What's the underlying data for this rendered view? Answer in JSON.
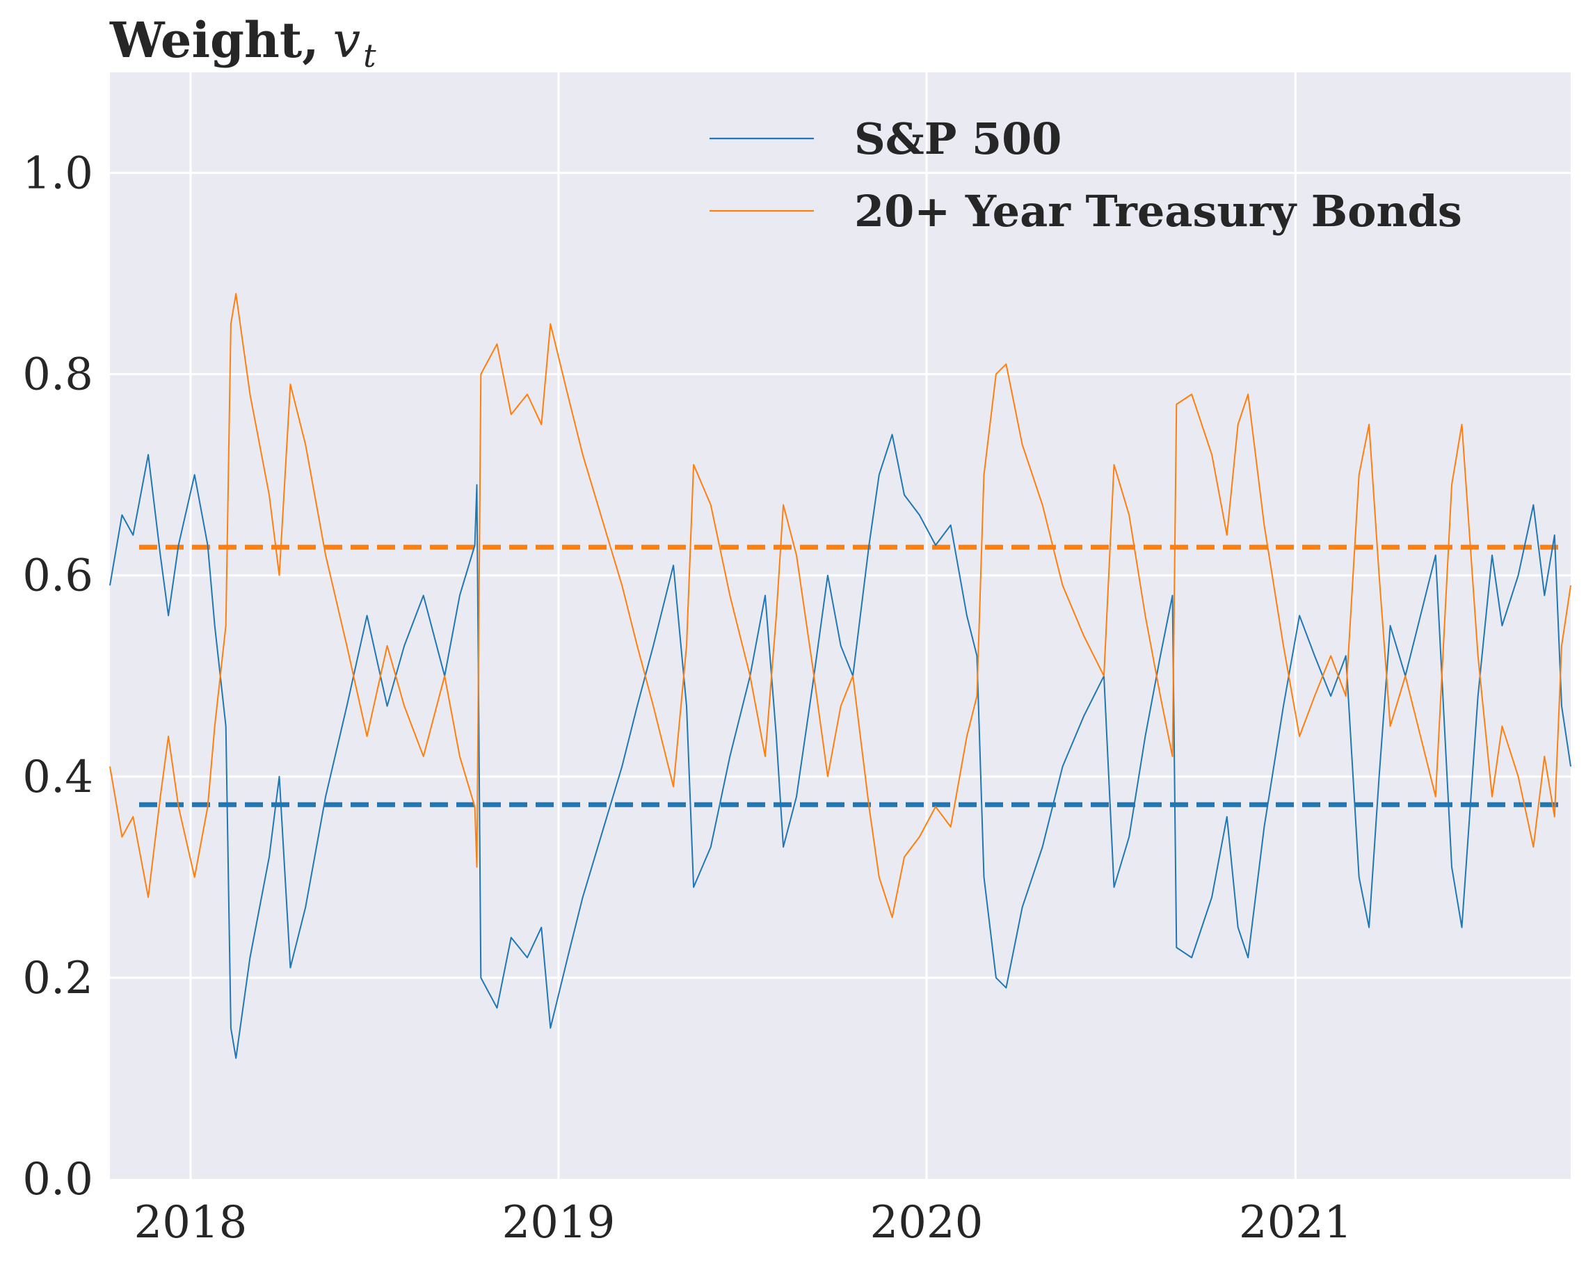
{
  "chart_data": {
    "type": "line",
    "title": "Weight,",
    "title_math": "v",
    "title_math_sub": "t",
    "x_range": [
      "2017-10-13",
      "2021-10-01"
    ],
    "ylim": [
      0,
      1.1
    ],
    "yticks": [
      "0.0",
      "0.2",
      "0.4",
      "0.6",
      "0.8",
      "1.0"
    ],
    "xticks": [
      {
        "date": "2018-01-01",
        "label": "2018"
      },
      {
        "date": "2019-01-01",
        "label": "2019"
      },
      {
        "date": "2020-01-01",
        "label": "2020"
      },
      {
        "date": "2021-01-01",
        "label": "2021"
      }
    ],
    "grid": true,
    "legend_position": "top-right",
    "colors": {
      "background": "#eaeaf2",
      "grid": "#ffffff",
      "sp500": "#1f77b4",
      "treasury": "#ff7f0e",
      "text": "#262626"
    },
    "series": [
      {
        "name": "S&P 500",
        "color": "#1f77b4",
        "points": [
          [
            "2017-10-13",
            0.59
          ],
          [
            "2017-10-25",
            0.66
          ],
          [
            "2017-11-05",
            0.64
          ],
          [
            "2017-11-20",
            0.72
          ],
          [
            "2017-12-02",
            0.62
          ],
          [
            "2017-12-10",
            0.56
          ],
          [
            "2017-12-20",
            0.63
          ],
          [
            "2018-01-05",
            0.7
          ],
          [
            "2018-01-18",
            0.63
          ],
          [
            "2018-01-25",
            0.55
          ],
          [
            "2018-02-05",
            0.45
          ],
          [
            "2018-02-10",
            0.15
          ],
          [
            "2018-02-15",
            0.12
          ],
          [
            "2018-03-01",
            0.22
          ],
          [
            "2018-03-20",
            0.32
          ],
          [
            "2018-03-30",
            0.4
          ],
          [
            "2018-04-10",
            0.21
          ],
          [
            "2018-04-25",
            0.27
          ],
          [
            "2018-05-15",
            0.38
          ],
          [
            "2018-06-05",
            0.47
          ],
          [
            "2018-06-25",
            0.56
          ],
          [
            "2018-07-15",
            0.47
          ],
          [
            "2018-08-01",
            0.53
          ],
          [
            "2018-08-20",
            0.58
          ],
          [
            "2018-09-10",
            0.5
          ],
          [
            "2018-09-25",
            0.58
          ],
          [
            "2018-10-10",
            0.63
          ],
          [
            "2018-10-12",
            0.69
          ],
          [
            "2018-10-16",
            0.2
          ],
          [
            "2018-11-01",
            0.17
          ],
          [
            "2018-11-15",
            0.24
          ],
          [
            "2018-12-01",
            0.22
          ],
          [
            "2018-12-15",
            0.25
          ],
          [
            "2018-12-24",
            0.15
          ],
          [
            "2019-01-10",
            0.22
          ],
          [
            "2019-01-25",
            0.28
          ],
          [
            "2019-02-15",
            0.35
          ],
          [
            "2019-03-05",
            0.41
          ],
          [
            "2019-03-20",
            0.47
          ],
          [
            "2019-04-05",
            0.53
          ],
          [
            "2019-04-25",
            0.61
          ],
          [
            "2019-05-08",
            0.47
          ],
          [
            "2019-05-15",
            0.29
          ],
          [
            "2019-06-01",
            0.33
          ],
          [
            "2019-06-20",
            0.42
          ],
          [
            "2019-07-10",
            0.5
          ],
          [
            "2019-07-25",
            0.58
          ],
          [
            "2019-08-05",
            0.44
          ],
          [
            "2019-08-12",
            0.33
          ],
          [
            "2019-08-25",
            0.38
          ],
          [
            "2019-09-10",
            0.49
          ],
          [
            "2019-09-25",
            0.6
          ],
          [
            "2019-10-08",
            0.53
          ],
          [
            "2019-10-20",
            0.5
          ],
          [
            "2019-11-05",
            0.63
          ],
          [
            "2019-11-15",
            0.7
          ],
          [
            "2019-11-28",
            0.74
          ],
          [
            "2019-12-10",
            0.68
          ],
          [
            "2019-12-25",
            0.66
          ],
          [
            "2020-01-10",
            0.63
          ],
          [
            "2020-01-25",
            0.65
          ],
          [
            "2020-02-10",
            0.56
          ],
          [
            "2020-02-20",
            0.52
          ],
          [
            "2020-02-27",
            0.3
          ],
          [
            "2020-03-10",
            0.2
          ],
          [
            "2020-03-20",
            0.19
          ],
          [
            "2020-04-05",
            0.27
          ],
          [
            "2020-04-25",
            0.33
          ],
          [
            "2020-05-15",
            0.41
          ],
          [
            "2020-06-05",
            0.46
          ],
          [
            "2020-06-25",
            0.5
          ],
          [
            "2020-07-05",
            0.29
          ],
          [
            "2020-07-20",
            0.34
          ],
          [
            "2020-08-05",
            0.44
          ],
          [
            "2020-08-20",
            0.52
          ],
          [
            "2020-09-01",
            0.58
          ],
          [
            "2020-09-05",
            0.23
          ],
          [
            "2020-09-20",
            0.22
          ],
          [
            "2020-10-10",
            0.28
          ],
          [
            "2020-10-25",
            0.36
          ],
          [
            "2020-11-05",
            0.25
          ],
          [
            "2020-11-15",
            0.22
          ],
          [
            "2020-12-01",
            0.35
          ],
          [
            "2020-12-20",
            0.47
          ],
          [
            "2021-01-05",
            0.56
          ],
          [
            "2021-01-20",
            0.52
          ],
          [
            "2021-02-05",
            0.48
          ],
          [
            "2021-02-20",
            0.52
          ],
          [
            "2021-03-05",
            0.3
          ],
          [
            "2021-03-15",
            0.25
          ],
          [
            "2021-03-25",
            0.4
          ],
          [
            "2021-04-05",
            0.55
          ],
          [
            "2021-04-20",
            0.5
          ],
          [
            "2021-05-05",
            0.56
          ],
          [
            "2021-05-20",
            0.62
          ],
          [
            "2021-06-05",
            0.31
          ],
          [
            "2021-06-15",
            0.25
          ],
          [
            "2021-07-01",
            0.48
          ],
          [
            "2021-07-15",
            0.62
          ],
          [
            "2021-07-25",
            0.55
          ],
          [
            "2021-08-10",
            0.6
          ],
          [
            "2021-08-25",
            0.67
          ],
          [
            "2021-09-05",
            0.58
          ],
          [
            "2021-09-15",
            0.64
          ],
          [
            "2021-09-22",
            0.47
          ],
          [
            "2021-10-01",
            0.41
          ]
        ]
      },
      {
        "name": "20+ Year Treasury Bonds",
        "color": "#ff7f0e",
        "points": [
          [
            "2017-10-13",
            0.41
          ],
          [
            "2017-10-25",
            0.34
          ],
          [
            "2017-11-05",
            0.36
          ],
          [
            "2017-11-20",
            0.28
          ],
          [
            "2017-12-02",
            0.38
          ],
          [
            "2017-12-10",
            0.44
          ],
          [
            "2017-12-20",
            0.37
          ],
          [
            "2018-01-05",
            0.3
          ],
          [
            "2018-01-18",
            0.37
          ],
          [
            "2018-01-25",
            0.45
          ],
          [
            "2018-02-05",
            0.55
          ],
          [
            "2018-02-10",
            0.85
          ],
          [
            "2018-02-15",
            0.88
          ],
          [
            "2018-03-01",
            0.78
          ],
          [
            "2018-03-20",
            0.68
          ],
          [
            "2018-03-30",
            0.6
          ],
          [
            "2018-04-10",
            0.79
          ],
          [
            "2018-04-25",
            0.73
          ],
          [
            "2018-05-15",
            0.62
          ],
          [
            "2018-06-05",
            0.53
          ],
          [
            "2018-06-25",
            0.44
          ],
          [
            "2018-07-15",
            0.53
          ],
          [
            "2018-08-01",
            0.47
          ],
          [
            "2018-08-20",
            0.42
          ],
          [
            "2018-09-10",
            0.5
          ],
          [
            "2018-09-25",
            0.42
          ],
          [
            "2018-10-10",
            0.37
          ],
          [
            "2018-10-12",
            0.31
          ],
          [
            "2018-10-16",
            0.8
          ],
          [
            "2018-11-01",
            0.83
          ],
          [
            "2018-11-15",
            0.76
          ],
          [
            "2018-12-01",
            0.78
          ],
          [
            "2018-12-15",
            0.75
          ],
          [
            "2018-12-24",
            0.85
          ],
          [
            "2019-01-10",
            0.78
          ],
          [
            "2019-01-25",
            0.72
          ],
          [
            "2019-02-15",
            0.65
          ],
          [
            "2019-03-05",
            0.59
          ],
          [
            "2019-03-20",
            0.53
          ],
          [
            "2019-04-05",
            0.47
          ],
          [
            "2019-04-25",
            0.39
          ],
          [
            "2019-05-08",
            0.53
          ],
          [
            "2019-05-15",
            0.71
          ],
          [
            "2019-06-01",
            0.67
          ],
          [
            "2019-06-20",
            0.58
          ],
          [
            "2019-07-10",
            0.5
          ],
          [
            "2019-07-25",
            0.42
          ],
          [
            "2019-08-05",
            0.56
          ],
          [
            "2019-08-12",
            0.67
          ],
          [
            "2019-08-25",
            0.62
          ],
          [
            "2019-09-10",
            0.51
          ],
          [
            "2019-09-25",
            0.4
          ],
          [
            "2019-10-08",
            0.47
          ],
          [
            "2019-10-20",
            0.5
          ],
          [
            "2019-11-05",
            0.37
          ],
          [
            "2019-11-15",
            0.3
          ],
          [
            "2019-11-28",
            0.26
          ],
          [
            "2019-12-10",
            0.32
          ],
          [
            "2019-12-25",
            0.34
          ],
          [
            "2020-01-10",
            0.37
          ],
          [
            "2020-01-25",
            0.35
          ],
          [
            "2020-02-10",
            0.44
          ],
          [
            "2020-02-20",
            0.48
          ],
          [
            "2020-02-27",
            0.7
          ],
          [
            "2020-03-10",
            0.8
          ],
          [
            "2020-03-20",
            0.81
          ],
          [
            "2020-04-05",
            0.73
          ],
          [
            "2020-04-25",
            0.67
          ],
          [
            "2020-05-15",
            0.59
          ],
          [
            "2020-06-05",
            0.54
          ],
          [
            "2020-06-25",
            0.5
          ],
          [
            "2020-07-05",
            0.71
          ],
          [
            "2020-07-20",
            0.66
          ],
          [
            "2020-08-05",
            0.56
          ],
          [
            "2020-08-20",
            0.48
          ],
          [
            "2020-09-01",
            0.42
          ],
          [
            "2020-09-05",
            0.77
          ],
          [
            "2020-09-20",
            0.78
          ],
          [
            "2020-10-10",
            0.72
          ],
          [
            "2020-10-25",
            0.64
          ],
          [
            "2020-11-05",
            0.75
          ],
          [
            "2020-11-15",
            0.78
          ],
          [
            "2020-12-01",
            0.65
          ],
          [
            "2020-12-20",
            0.53
          ],
          [
            "2021-01-05",
            0.44
          ],
          [
            "2021-01-20",
            0.48
          ],
          [
            "2021-02-05",
            0.52
          ],
          [
            "2021-02-20",
            0.48
          ],
          [
            "2021-03-05",
            0.7
          ],
          [
            "2021-03-15",
            0.75
          ],
          [
            "2021-03-25",
            0.6
          ],
          [
            "2021-04-05",
            0.45
          ],
          [
            "2021-04-20",
            0.5
          ],
          [
            "2021-05-05",
            0.44
          ],
          [
            "2021-05-20",
            0.38
          ],
          [
            "2021-06-05",
            0.69
          ],
          [
            "2021-06-15",
            0.75
          ],
          [
            "2021-07-01",
            0.52
          ],
          [
            "2021-07-15",
            0.38
          ],
          [
            "2021-07-25",
            0.45
          ],
          [
            "2021-08-10",
            0.4
          ],
          [
            "2021-08-25",
            0.33
          ],
          [
            "2021-09-05",
            0.42
          ],
          [
            "2021-09-15",
            0.36
          ],
          [
            "2021-09-22",
            0.53
          ],
          [
            "2021-10-01",
            0.59
          ]
        ]
      }
    ],
    "reference_lines": [
      {
        "series": "S&P 500",
        "value": 0.372,
        "style": "dashed",
        "color": "#1f77b4"
      },
      {
        "series": "20+ Year Treasury Bonds",
        "value": 0.628,
        "style": "dashed",
        "color": "#ff7f0e"
      }
    ]
  }
}
